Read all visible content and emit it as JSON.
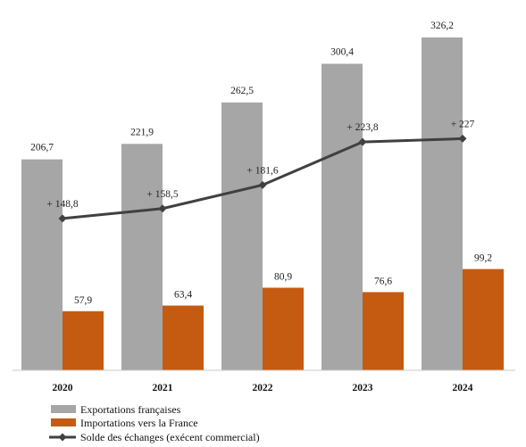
{
  "chart_data": {
    "type": "bar",
    "categories": [
      "2020",
      "2021",
      "2022",
      "2023",
      "2024"
    ],
    "series": [
      {
        "name": "Exportations françaises",
        "kind": "bar",
        "color": "#a6a6a6",
        "values": [
          206.7,
          221.9,
          262.5,
          300.4,
          326.2
        ],
        "labels": [
          "206,7",
          "221,9",
          "262,5",
          "300,4",
          "326,2"
        ]
      },
      {
        "name": "Importations vers la France",
        "kind": "bar",
        "color": "#c55a11",
        "values": [
          57.9,
          63.4,
          80.9,
          76.6,
          99.2
        ],
        "labels": [
          "57,9",
          "63,4",
          "80,9",
          "76,6",
          "99,2"
        ]
      },
      {
        "name": "Solde des échanges (exécent commercial)",
        "kind": "line",
        "color": "#404040",
        "values": [
          148.8,
          158.5,
          181.6,
          223.8,
          227
        ],
        "labels": [
          "+ 148,8",
          "+ 158,5",
          "+ 181,6",
          "+ 223,8",
          "+ 227"
        ]
      }
    ],
    "ylim": [
      0,
      350
    ],
    "grid": false,
    "legend_position": "bottom-left"
  }
}
